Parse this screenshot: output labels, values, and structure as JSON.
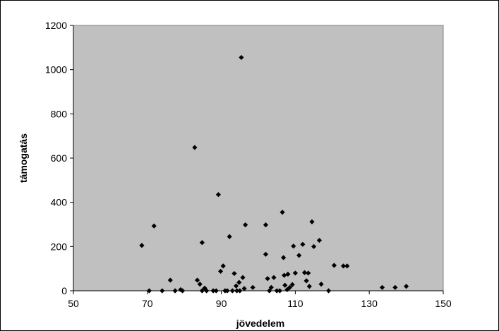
{
  "chart_data": {
    "type": "scatter",
    "title": "",
    "xlabel": "jövedelem",
    "ylabel": "támogatás",
    "xlim": [
      50,
      150
    ],
    "ylim": [
      0,
      1200
    ],
    "xticks": [
      50,
      70,
      90,
      110,
      130,
      150
    ],
    "yticks": [
      0,
      200,
      400,
      600,
      800,
      1000,
      1200
    ],
    "grid": false,
    "plot_background": "#c0c0c0",
    "marker_color": "#000000",
    "marker": "diamond",
    "points": [
      [
        68.5,
        205
      ],
      [
        70.5,
        0
      ],
      [
        71.8,
        293
      ],
      [
        74,
        0
      ],
      [
        76.2,
        48
      ],
      [
        77.5,
        0
      ],
      [
        79,
        5
      ],
      [
        79.5,
        0
      ],
      [
        82.8,
        648
      ],
      [
        83.5,
        48
      ],
      [
        84.2,
        30
      ],
      [
        84.8,
        218
      ],
      [
        84.8,
        0
      ],
      [
        85.5,
        12
      ],
      [
        86,
        0
      ],
      [
        87.8,
        0
      ],
      [
        88.6,
        0
      ],
      [
        89.2,
        435
      ],
      [
        89.8,
        88
      ],
      [
        90.5,
        112
      ],
      [
        91,
        0
      ],
      [
        91.6,
        0
      ],
      [
        92.2,
        245
      ],
      [
        93,
        0
      ],
      [
        93.5,
        78
      ],
      [
        94,
        22
      ],
      [
        94.2,
        0
      ],
      [
        94.8,
        38
      ],
      [
        95,
        0
      ],
      [
        95.4,
        1055
      ],
      [
        95.8,
        60
      ],
      [
        96.2,
        10
      ],
      [
        96.5,
        298
      ],
      [
        98.5,
        15
      ],
      [
        102,
        298
      ],
      [
        102,
        165
      ],
      [
        102.5,
        55
      ],
      [
        103,
        0
      ],
      [
        103.5,
        15
      ],
      [
        104.2,
        60
      ],
      [
        105,
        0
      ],
      [
        105.8,
        0
      ],
      [
        106.5,
        355
      ],
      [
        106.8,
        150
      ],
      [
        107,
        70
      ],
      [
        107.2,
        25
      ],
      [
        107.8,
        5
      ],
      [
        108,
        75
      ],
      [
        108.5,
        15
      ],
      [
        109.2,
        28
      ],
      [
        109.5,
        202
      ],
      [
        110,
        80
      ],
      [
        111,
        160
      ],
      [
        112,
        210
      ],
      [
        112.5,
        82
      ],
      [
        113,
        45
      ],
      [
        113.5,
        80
      ],
      [
        113.8,
        20
      ],
      [
        114.5,
        312
      ],
      [
        115,
        200
      ],
      [
        116.5,
        228
      ],
      [
        117,
        30
      ],
      [
        119,
        0
      ],
      [
        120.5,
        115
      ],
      [
        123,
        112
      ],
      [
        124,
        112
      ],
      [
        133.5,
        15
      ],
      [
        137,
        15
      ],
      [
        140,
        20
      ]
    ]
  }
}
